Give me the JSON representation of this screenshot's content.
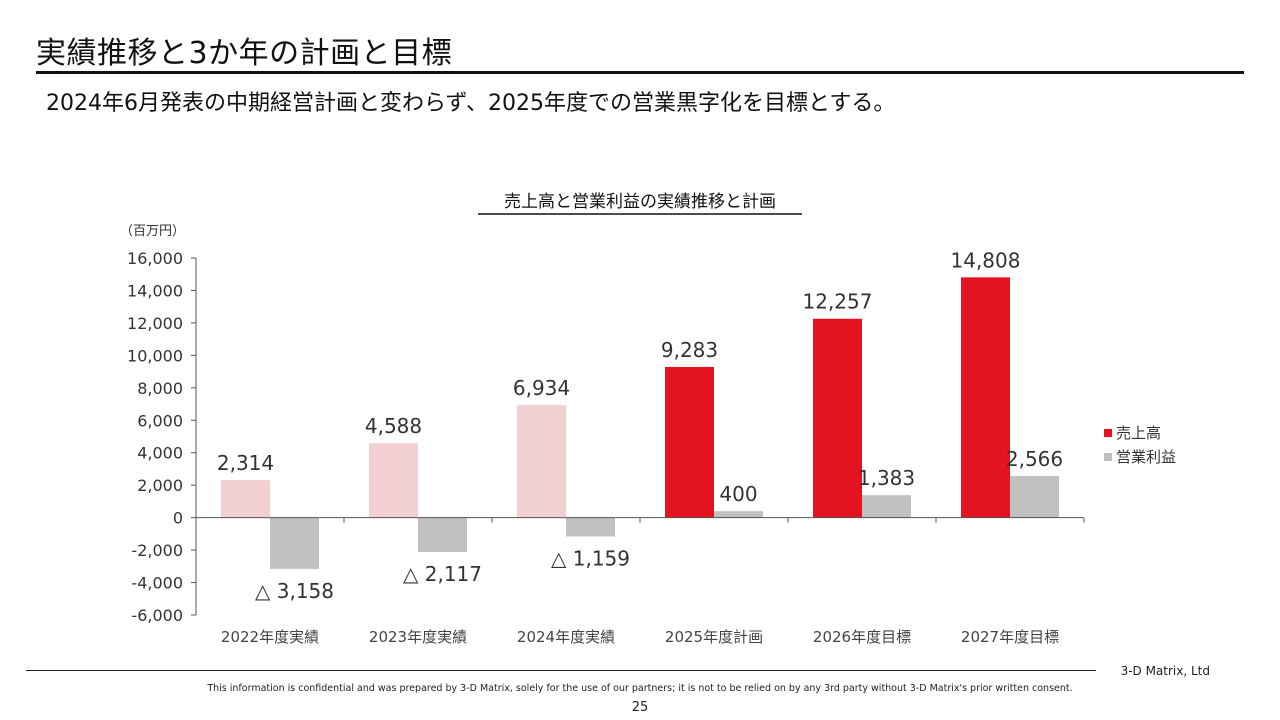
{
  "slide": {
    "title": "実績推移と3か年の計画と目標",
    "subtitle": "2024年6月発表の中期経営計画と変わらず、2025年度での営業黒字化を目標とする。"
  },
  "chart_data": {
    "type": "bar",
    "title": "売上高と営業利益の実績推移と計画",
    "unit_label": "（百万円）",
    "categories": [
      "2022年度実績",
      "2023年度実績",
      "2024年度実績",
      "2025年度計画",
      "2026年度目標",
      "2027年度目標"
    ],
    "series": [
      {
        "name": "売上高",
        "values": [
          2314,
          4588,
          6934,
          9283,
          12257,
          14808
        ],
        "labels": [
          "2,314",
          "4,588",
          "6,934",
          "9,283",
          "12,257",
          "14,808"
        ],
        "colors": [
          "#f2cfd0",
          "#f2cfd0",
          "#f2cfd0",
          "#e3141f",
          "#e3141f",
          "#e3141f"
        ]
      },
      {
        "name": "営業利益",
        "values": [
          -3158,
          -2117,
          -1159,
          400,
          1383,
          2566
        ],
        "labels": [
          "△ 3,158",
          "△ 2,117",
          "△ 1,159",
          "400",
          "1,383",
          "2,566"
        ],
        "colors": [
          "#c0c0c0",
          "#c0c0c0",
          "#c0c0c0",
          "#c0c0c0",
          "#c0c0c0",
          "#c0c0c0"
        ]
      }
    ],
    "ylim": [
      -6000,
      16000
    ],
    "yticks": [
      16000,
      14000,
      12000,
      10000,
      8000,
      6000,
      4000,
      2000,
      0,
      -2000,
      -4000,
      -6000
    ],
    "ytick_labels": [
      "16,000",
      "14,000",
      "12,000",
      "10,000",
      "8,000",
      "6,000",
      "4,000",
      "2,000",
      "0",
      "-2,000",
      "-4,000",
      "-6,000"
    ],
    "legend": [
      {
        "name": "売上高",
        "color": "#e3141f"
      },
      {
        "name": "営業利益",
        "color": "#c0c0c0"
      }
    ],
    "legend_position": "right",
    "grid": false
  },
  "footer": {
    "company": "3-D Matrix, Ltd",
    "confidential": "This information is confidential and was prepared by 3-D Matrix, solely for the use of our partners; it is not to be relied on by any 3rd party without 3-D Matrix's prior written consent.",
    "page": "25"
  }
}
